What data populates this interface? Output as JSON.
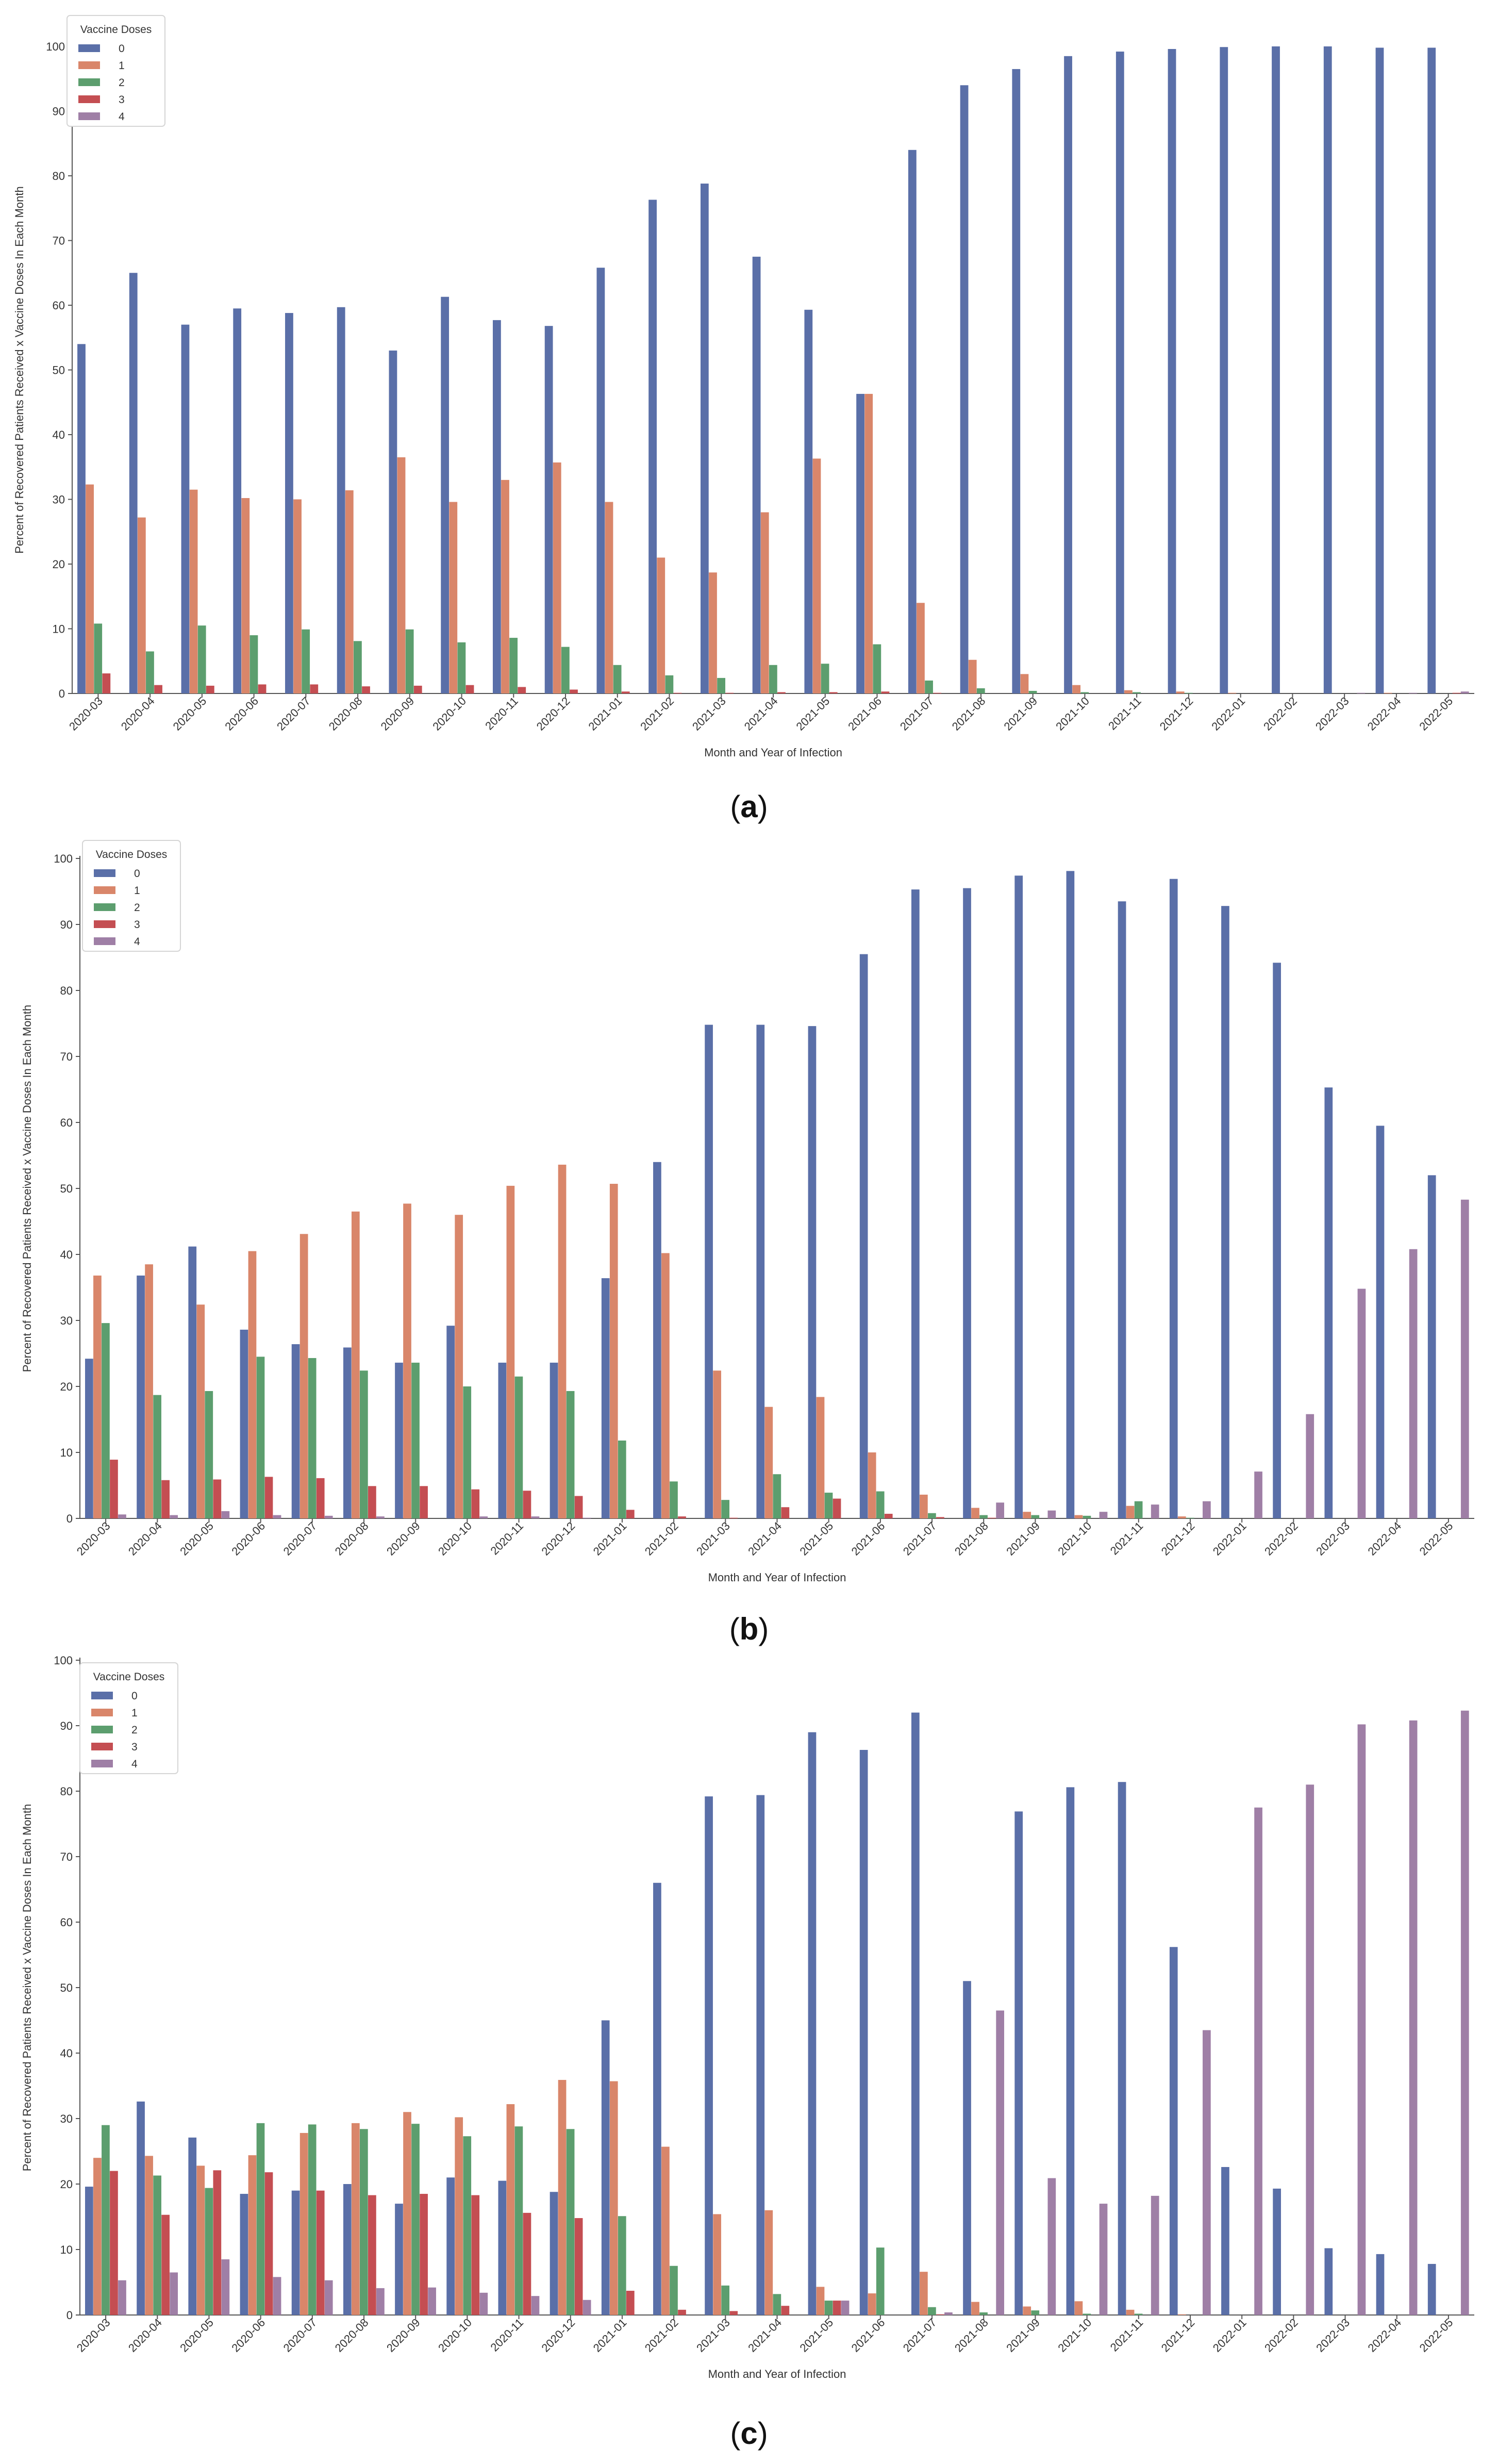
{
  "chart_data": [
    {
      "type": "bar",
      "panel": "a",
      "caption": {
        "open": "(",
        "letter": "a",
        "close": ")"
      },
      "xlabel": "Month and Year of Infection",
      "ylabel": "Percent of Recovered Patients Received x Vaccine Doses In Each Month",
      "ylim": [
        0,
        100
      ],
      "yticks": [
        0,
        10,
        20,
        30,
        40,
        50,
        60,
        70,
        80,
        90,
        100
      ],
      "legend": {
        "title": "Vaccine Doses",
        "placement": "top-left"
      },
      "categories": [
        "2020-03",
        "2020-04",
        "2020-05",
        "2020-06",
        "2020-07",
        "2020-08",
        "2020-09",
        "2020-10",
        "2020-11",
        "2020-12",
        "2021-01",
        "2021-02",
        "2021-03",
        "2021-04",
        "2021-05",
        "2021-06",
        "2021-07",
        "2021-08",
        "2021-09",
        "2021-10",
        "2021-11",
        "2021-12",
        "2022-01",
        "2022-02",
        "2022-03",
        "2022-04",
        "2022-05"
      ],
      "series": [
        {
          "name": "0",
          "color": "#5a6fa8",
          "values": [
            54,
            65,
            57,
            59.5,
            58.8,
            59.7,
            53,
            61.3,
            57.7,
            56.8,
            65.8,
            76.3,
            78.8,
            67.5,
            59.3,
            46.3,
            84,
            94,
            96.5,
            98.5,
            99.2,
            99.6,
            99.9,
            100,
            100,
            99.8,
            99.8
          ]
        },
        {
          "name": "1",
          "color": "#d9866a",
          "values": [
            32.3,
            27.2,
            31.5,
            30.2,
            30,
            31.4,
            36.5,
            29.6,
            33,
            35.7,
            29.6,
            21,
            18.7,
            28,
            36.3,
            46.3,
            14,
            5.2,
            3,
            1.3,
            0.5,
            0.3,
            0.1,
            0,
            0,
            0.1,
            0
          ]
        },
        {
          "name": "2",
          "color": "#5c9e6e",
          "values": [
            10.8,
            6.5,
            10.5,
            9,
            9.9,
            8.1,
            9.9,
            7.9,
            8.6,
            7.2,
            4.4,
            2.8,
            2.4,
            4.4,
            4.6,
            7.6,
            2,
            0.8,
            0.4,
            0.2,
            0.2,
            0.1,
            0,
            0,
            0,
            0,
            0
          ]
        },
        {
          "name": "3",
          "color": "#c44e52",
          "values": [
            3.1,
            1.3,
            1.2,
            1.4,
            1.4,
            1.1,
            1.2,
            1.3,
            1,
            0.6,
            0.3,
            0.1,
            0.1,
            0.2,
            0.2,
            0.3,
            0.1,
            0,
            0,
            0,
            0,
            0,
            0,
            0,
            0,
            0,
            0.1
          ]
        },
        {
          "name": "4",
          "color": "#9f7fa6",
          "values": [
            0,
            0,
            0,
            0,
            0,
            0,
            0,
            0,
            0,
            0,
            0,
            0,
            0,
            0,
            0,
            0,
            0,
            0,
            0,
            0,
            0,
            0,
            0,
            0,
            0.1,
            0.1,
            0.3
          ]
        }
      ]
    },
    {
      "type": "bar",
      "panel": "b",
      "caption": {
        "open": "(",
        "letter": "b",
        "close": ")"
      },
      "xlabel": "Month and Year of Infection",
      "ylabel": "Percent of Recovered Patients Received x Vaccine Doses In Each Month",
      "ylim": [
        0,
        100
      ],
      "yticks": [
        0,
        10,
        20,
        30,
        40,
        50,
        60,
        70,
        80,
        90,
        100
      ],
      "legend": {
        "title": "Vaccine Doses",
        "placement": "top-left"
      },
      "categories": [
        "2020-03",
        "2020-04",
        "2020-05",
        "2020-06",
        "2020-07",
        "2020-08",
        "2020-09",
        "2020-10",
        "2020-11",
        "2020-12",
        "2021-01",
        "2021-02",
        "2021-03",
        "2021-04",
        "2021-05",
        "2021-06",
        "2021-07",
        "2021-08",
        "2021-09",
        "2021-10",
        "2021-11",
        "2021-12",
        "2022-01",
        "2022-02",
        "2022-03",
        "2022-04",
        "2022-05"
      ],
      "series": [
        {
          "name": "0",
          "color": "#5a6fa8",
          "values": [
            24.2,
            36.8,
            41.2,
            28.6,
            26.4,
            25.9,
            23.6,
            29.2,
            23.6,
            23.6,
            36.4,
            54,
            74.8,
            74.8,
            74.6,
            85.5,
            95.3,
            95.5,
            97.4,
            98.1,
            93.5,
            96.9,
            92.8,
            84.2,
            65.3,
            59.5,
            52
          ]
        },
        {
          "name": "1",
          "color": "#d9866a",
          "values": [
            36.8,
            38.5,
            32.4,
            40.5,
            43.1,
            46.5,
            47.7,
            46,
            50.4,
            53.6,
            50.7,
            40.2,
            22.4,
            16.9,
            18.4,
            10,
            3.6,
            1.6,
            1,
            0.5,
            1.9,
            0.3,
            0,
            0,
            0,
            0,
            0
          ]
        },
        {
          "name": "2",
          "color": "#5c9e6e",
          "values": [
            29.6,
            18.7,
            19.3,
            24.5,
            24.3,
            22.4,
            23.6,
            20,
            21.5,
            19.3,
            11.8,
            5.6,
            2.8,
            6.7,
            3.9,
            4.1,
            0.8,
            0.5,
            0.5,
            0.4,
            2.6,
            0.1,
            0,
            0,
            0,
            0,
            0
          ]
        },
        {
          "name": "3",
          "color": "#c44e52",
          "values": [
            8.9,
            5.8,
            5.9,
            6.3,
            6.1,
            4.9,
            4.9,
            4.4,
            4.2,
            3.4,
            1.3,
            0.3,
            0.1,
            1.7,
            3,
            0.7,
            0.2,
            0.1,
            0,
            0,
            0,
            0,
            0,
            0,
            0,
            0,
            0
          ]
        },
        {
          "name": "4",
          "color": "#9f7fa6",
          "values": [
            0.6,
            0.5,
            1.1,
            0.5,
            0.4,
            0.3,
            0,
            0.3,
            0.3,
            0.1,
            0,
            0,
            0,
            0,
            0,
            0,
            0,
            2.4,
            1.2,
            1,
            2.1,
            2.6,
            7.1,
            15.8,
            34.8,
            40.8,
            48.3
          ]
        }
      ]
    },
    {
      "type": "bar",
      "panel": "c",
      "caption": {
        "open": "(",
        "letter": "c",
        "close": ")"
      },
      "xlabel": "Month and Year of Infection",
      "ylabel": "Percent of Recovered Patients Received x Vaccine Doses In Each Month",
      "ylim": [
        0,
        100
      ],
      "yticks": [
        0,
        10,
        20,
        30,
        40,
        50,
        60,
        70,
        80,
        90,
        100
      ],
      "legend": {
        "title": "Vaccine Doses",
        "placement": "top-left"
      },
      "categories": [
        "2020-03",
        "2020-04",
        "2020-05",
        "2020-06",
        "2020-07",
        "2020-08",
        "2020-09",
        "2020-10",
        "2020-11",
        "2020-12",
        "2021-01",
        "2021-02",
        "2021-03",
        "2021-04",
        "2021-05",
        "2021-06",
        "2021-07",
        "2021-08",
        "2021-09",
        "2021-10",
        "2021-11",
        "2021-12",
        "2022-01",
        "2022-02",
        "2022-03",
        "2022-04",
        "2022-05"
      ],
      "series": [
        {
          "name": "0",
          "color": "#5a6fa8",
          "values": [
            19.6,
            32.6,
            27.1,
            18.5,
            19,
            20,
            17,
            21,
            20.5,
            18.8,
            45,
            66,
            79.2,
            79.4,
            89,
            86.3,
            92,
            51,
            76.9,
            80.6,
            81.4,
            56.2,
            22.6,
            19.3,
            10.2,
            9.3,
            7.8
          ]
        },
        {
          "name": "1",
          "color": "#d9866a",
          "values": [
            24,
            24.3,
            22.8,
            24.4,
            27.8,
            29.3,
            31,
            30.2,
            32.2,
            35.9,
            35.7,
            25.7,
            15.4,
            16,
            4.3,
            3.3,
            6.6,
            2,
            1.3,
            2.1,
            0.8,
            0.1,
            0,
            0,
            0,
            0,
            0
          ]
        },
        {
          "name": "2",
          "color": "#5c9e6e",
          "values": [
            29,
            21.3,
            19.4,
            29.3,
            29.1,
            28.4,
            29.2,
            27.3,
            28.8,
            28.4,
            15.1,
            7.5,
            4.5,
            3.2,
            2.2,
            10.3,
            1.2,
            0.4,
            0.7,
            0.2,
            0.2,
            0,
            0,
            0,
            0,
            0,
            0
          ]
        },
        {
          "name": "3",
          "color": "#c44e52",
          "values": [
            22,
            15.3,
            22.1,
            21.8,
            19,
            18.3,
            18.5,
            18.3,
            15.6,
            14.8,
            3.7,
            0.8,
            0.6,
            1.4,
            2.2,
            0,
            0.1,
            0,
            0,
            0,
            0,
            0,
            0,
            0,
            0,
            0,
            0
          ]
        },
        {
          "name": "4",
          "color": "#9f7fa6",
          "values": [
            5.3,
            6.5,
            8.5,
            5.8,
            5.3,
            4.1,
            4.2,
            3.4,
            2.9,
            2.3,
            0,
            0,
            0,
            0,
            2.2,
            0,
            0.4,
            46.5,
            20.9,
            17,
            18.2,
            43.5,
            77.5,
            81,
            90.2,
            90.8,
            92.3
          ]
        }
      ]
    }
  ]
}
